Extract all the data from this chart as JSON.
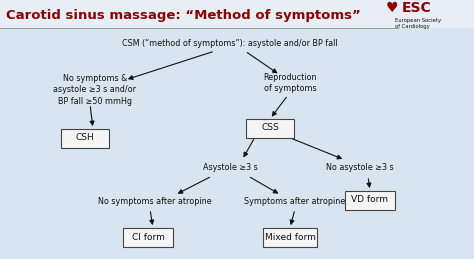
{
  "title": "Carotid sinus massage: “Method of symptoms”",
  "title_color": "#8B0000",
  "bg_color": "#d8e4f0",
  "box_color": "#f5f5f5",
  "box_edge_color": "#444444",
  "text_color": "#111111",
  "arrow_color": "#111111",
  "font_size_title": 9.5,
  "font_size_main": 5.8,
  "font_size_box": 6.5,
  "nodes": {
    "root_label": "CSM (“method of symptoms”): asystole and/or BP fall",
    "left_label": "No symptoms &\nasystole ≥3 s and/or\nBP fall ≥50 mmHg",
    "left_box": "CSH",
    "right_label": "Reproduction\nof symptoms",
    "right_box": "CSS",
    "mid_label": "Asystole ≥3 s",
    "far_right_label": "No asystole ≥3 s",
    "far_right_box": "VD form",
    "ll_label": "No symptoms after atropine",
    "lr_label": "Symptoms after atropine",
    "ll_box": "CI form",
    "lr_box": "Mixed form"
  },
  "esc_text": "ESC",
  "esc_sub": "European Society\nof Cardiology"
}
